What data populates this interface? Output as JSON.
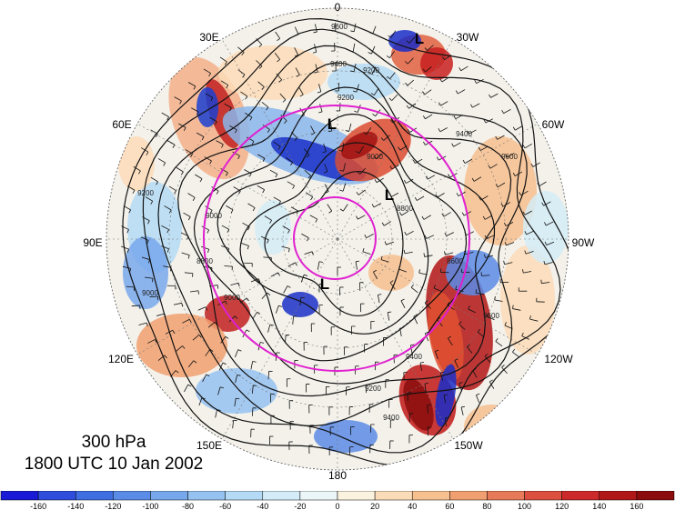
{
  "title": {
    "level": "300 hPa",
    "time": "1800 UTC 10 Jan 2002"
  },
  "longitude_labels": [
    "0",
    "30W",
    "60W",
    "90W",
    "120W",
    "150W",
    "180",
    "150E",
    "120E",
    "90E",
    "60E",
    "30E"
  ],
  "contour_labels": [
    "9600",
    "9400",
    "9200",
    "9000",
    "8800",
    "8600",
    "9600",
    "9400",
    "9200",
    "9000",
    "8800",
    "9000",
    "9200",
    "9400",
    "9600",
    "9400",
    "9200",
    "9000"
  ],
  "low_markers": [
    "L",
    "L",
    "L",
    "L"
  ],
  "colorbar": {
    "labels": [
      "-160",
      "-140",
      "-120",
      "-100",
      "-80",
      "-60",
      "-40",
      "-20",
      "0",
      "20",
      "40",
      "60",
      "80",
      "100",
      "120",
      "140",
      "160"
    ],
    "colors": [
      "#1a1ad6",
      "#2e4ddc",
      "#3f6ee0",
      "#5a8be6",
      "#78a8ec",
      "#95c2f1",
      "#b4daf5",
      "#d4ecf7",
      "#eaf6f8",
      "#fbf3e0",
      "#fbdcb8",
      "#f6c08f",
      "#f0a070",
      "#e77a58",
      "#dc5040",
      "#cc2a2a",
      "#b01818",
      "#8a0c0c"
    ]
  }
}
